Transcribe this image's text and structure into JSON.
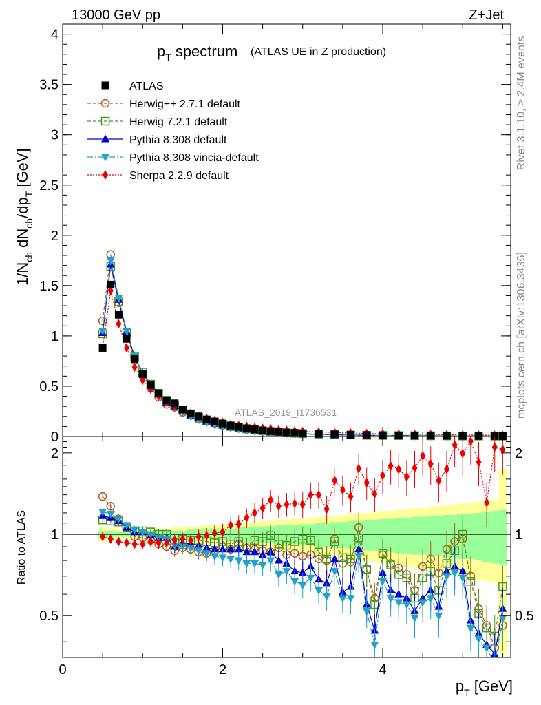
{
  "header": {
    "left": "13000 GeV pp",
    "right": "Z+Jet"
  },
  "side": {
    "rivet": "Rivet 3.1.10, ≥ 2.4M events",
    "mcplots": "mcplots.cern.ch [arXiv:1306.3436]"
  },
  "colors": {
    "herwigpp": "#b25a1c",
    "herwig7": "#4a9a1e",
    "pythia": "#0000cc",
    "vincia": "#1fa3c9",
    "sherpa": "#ee0000",
    "band_outer": "#ffff99",
    "band_inner": "#99ff99"
  },
  "chart_data": [
    {
      "type": "line",
      "title": "p_T spectrum",
      "title_main": "p",
      "title_sub": "T",
      "title_word": "spectrum",
      "subtitle": "(ATLAS UE in Z production)",
      "ylabel": "1/N_ch dN_ch/dp_T [GeV]",
      "ylabel_parts": [
        "1/N",
        "ch",
        " dN",
        "ch",
        "/dp",
        "T",
        " [GeV]"
      ],
      "watermark": "ATLAS_2019_I1736531",
      "xlim": [
        0,
        5.6
      ],
      "ylim": [
        0,
        4.1
      ],
      "yticks": [
        "0",
        "0.5",
        "1",
        "1.5",
        "2",
        "2.5",
        "3",
        "3.5",
        "4"
      ],
      "ytick_values": [
        0,
        0.5,
        1,
        1.5,
        2,
        2.5,
        3,
        3.5,
        4
      ],
      "x": [
        0.5,
        0.6,
        0.7,
        0.8,
        0.9,
        1.0,
        1.1,
        1.2,
        1.3,
        1.4,
        1.5,
        1.6,
        1.7,
        1.8,
        1.9,
        2.0,
        2.1,
        2.2,
        2.3,
        2.4,
        2.5,
        2.6,
        2.7,
        2.8,
        2.9,
        3.0,
        3.2,
        3.4,
        3.6,
        3.8,
        4.0,
        4.2,
        4.4,
        4.6,
        4.8,
        5.0,
        5.2,
        5.4,
        5.5
      ],
      "legend": [
        {
          "label": "ATLAS",
          "marker": "square",
          "color": "#000000"
        },
        {
          "label": "Herwig++ 2.7.1 default",
          "marker": "circle",
          "color": "#b25a1c"
        },
        {
          "label": "Herwig 7.2.1 default",
          "marker": "square-open",
          "color": "#4a9a1e"
        },
        {
          "label": "Pythia 8.308 default",
          "marker": "triangle-up",
          "color": "#0000cc"
        },
        {
          "label": "Pythia 8.308 vincia-default",
          "marker": "triangle-down",
          "color": "#1fa3c9"
        },
        {
          "label": "Sherpa 2.2.9 default",
          "marker": "diamond",
          "color": "#ee0000"
        }
      ],
      "series": [
        {
          "name": "ATLAS",
          "values": [
            0.88,
            1.51,
            1.21,
            0.97,
            0.77,
            0.62,
            0.51,
            0.43,
            0.36,
            0.33,
            0.27,
            0.23,
            0.2,
            0.17,
            0.15,
            0.13,
            0.11,
            0.095,
            0.082,
            0.071,
            0.062,
            0.054,
            0.047,
            0.041,
            0.036,
            0.032,
            0.026,
            0.021,
            0.017,
            0.014,
            0.012,
            0.01,
            0.009,
            0.008,
            0.007,
            0.006,
            0.005,
            0.0045,
            0.004
          ]
        },
        {
          "name": "Herwig++ 2.7.1 default",
          "values": [
            1.15,
            1.81,
            1.33,
            1.01,
            0.76,
            0.61,
            0.48,
            0.39,
            0.32,
            0.29,
            0.24,
            0.21,
            0.17,
            0.15,
            0.13,
            0.11,
            0.095,
            0.082,
            0.07,
            0.06,
            0.052,
            0.045,
            0.039,
            0.034,
            0.03,
            0.027,
            0.022,
            0.018,
            0.015,
            0.012,
            0.01,
            0.009,
            0.008,
            0.007,
            0.006,
            0.005,
            0.0045,
            0.004,
            0.0035
          ]
        },
        {
          "name": "Herwig 7.2.1 default",
          "values": [
            1.02,
            1.69,
            1.34,
            1.03,
            0.8,
            0.64,
            0.52,
            0.43,
            0.36,
            0.31,
            0.26,
            0.22,
            0.19,
            0.16,
            0.14,
            0.12,
            0.1,
            0.088,
            0.075,
            0.065,
            0.056,
            0.049,
            0.042,
            0.036,
            0.032,
            0.028,
            0.023,
            0.019,
            0.015,
            0.012,
            0.01,
            0.009,
            0.008,
            0.007,
            0.006,
            0.005,
            0.0045,
            0.004,
            0.0035
          ]
        },
        {
          "name": "Pythia 8.308 default",
          "values": [
            1.03,
            1.71,
            1.36,
            1.04,
            0.79,
            0.63,
            0.51,
            0.42,
            0.34,
            0.3,
            0.25,
            0.21,
            0.18,
            0.15,
            0.13,
            0.11,
            0.095,
            0.082,
            0.07,
            0.06,
            0.052,
            0.045,
            0.039,
            0.034,
            0.03,
            0.026,
            0.021,
            0.017,
            0.014,
            0.011,
            0.009,
            0.008,
            0.007,
            0.006,
            0.005,
            0.0045,
            0.004,
            0.0035,
            0.003
          ]
        },
        {
          "name": "Pythia 8.308 vincia-default",
          "values": [
            1.05,
            1.75,
            1.38,
            1.05,
            0.8,
            0.63,
            0.51,
            0.42,
            0.34,
            0.3,
            0.24,
            0.2,
            0.17,
            0.14,
            0.12,
            0.1,
            0.088,
            0.075,
            0.064,
            0.055,
            0.048,
            0.041,
            0.036,
            0.031,
            0.027,
            0.024,
            0.019,
            0.016,
            0.013,
            0.01,
            0.008,
            0.007,
            0.006,
            0.005,
            0.0045,
            0.004,
            0.0035,
            0.003,
            0.0025
          ]
        },
        {
          "name": "Sherpa 2.2.9 default",
          "values": [
            0.88,
            1.45,
            1.12,
            0.88,
            0.69,
            0.56,
            0.47,
            0.4,
            0.34,
            0.3,
            0.26,
            0.23,
            0.2,
            0.18,
            0.16,
            0.14,
            0.12,
            0.11,
            0.1,
            0.09,
            0.08,
            0.075,
            0.065,
            0.06,
            0.055,
            0.05,
            0.045,
            0.04,
            0.035,
            0.03,
            0.027,
            0.024,
            0.022,
            0.02,
            0.018,
            0.016,
            0.014,
            0.012,
            0.011
          ]
        }
      ]
    },
    {
      "type": "line",
      "title": "Ratio",
      "ylabel": "Ratio to ATLAS",
      "xlabel": "p_T [GeV]",
      "xlabel_main": "p",
      "xlabel_sub": "T",
      "xlabel_unit": " [GeV]",
      "xlim": [
        0,
        5.6
      ],
      "ylim": [
        0.35,
        2.3
      ],
      "xticks": [
        "0",
        "2",
        "4"
      ],
      "xtick_values": [
        0,
        2,
        4
      ],
      "yticks": [
        "0.5",
        "1",
        "2"
      ],
      "ytick_values": [
        0.5,
        1,
        2
      ],
      "bin_edges": [
        0.45,
        0.55,
        0.65,
        0.75,
        0.85,
        0.95,
        1.05,
        1.15,
        1.25,
        1.35,
        1.45,
        1.55,
        1.65,
        1.75,
        1.85,
        1.95,
        2.05,
        2.15,
        2.25,
        2.35,
        2.45,
        2.55,
        2.65,
        2.75,
        2.85,
        2.95,
        3.05,
        3.15,
        3.25,
        3.35,
        3.45,
        3.55,
        3.65,
        3.75,
        3.85,
        3.95,
        4.05,
        4.15,
        4.25,
        4.35,
        4.45,
        4.55,
        4.65,
        4.75,
        4.85,
        4.95,
        5.05,
        5.15,
        5.25,
        5.35,
        5.45,
        5.55
      ],
      "band_outer": [
        0.06,
        0.05,
        0.04,
        0.04,
        0.04,
        0.04,
        0.05,
        0.05,
        0.05,
        0.06,
        0.06,
        0.07,
        0.07,
        0.08,
        0.08,
        0.09,
        0.09,
        0.1,
        0.1,
        0.11,
        0.12,
        0.12,
        0.13,
        0.13,
        0.14,
        0.14,
        0.15,
        0.16,
        0.17,
        0.17,
        0.18,
        0.19,
        0.2,
        0.2,
        0.21,
        0.22,
        0.22,
        0.23,
        0.24,
        0.25,
        0.25,
        0.26,
        0.27,
        0.28,
        0.29,
        0.3,
        0.31,
        0.32,
        0.33,
        0.34,
        0.75
      ],
      "band_inner": [
        0.03,
        0.03,
        0.02,
        0.02,
        0.02,
        0.02,
        0.02,
        0.03,
        0.03,
        0.03,
        0.03,
        0.04,
        0.04,
        0.04,
        0.05,
        0.05,
        0.05,
        0.06,
        0.06,
        0.06,
        0.07,
        0.07,
        0.08,
        0.08,
        0.08,
        0.09,
        0.09,
        0.1,
        0.1,
        0.11,
        0.11,
        0.12,
        0.12,
        0.13,
        0.13,
        0.14,
        0.14,
        0.15,
        0.15,
        0.16,
        0.16,
        0.17,
        0.17,
        0.18,
        0.18,
        0.19,
        0.19,
        0.2,
        0.21,
        0.22,
        0.23
      ],
      "x": [
        0.5,
        0.6,
        0.7,
        0.8,
        0.9,
        1.0,
        1.1,
        1.2,
        1.3,
        1.4,
        1.5,
        1.6,
        1.7,
        1.8,
        1.9,
        2.0,
        2.1,
        2.2,
        2.3,
        2.4,
        2.5,
        2.6,
        2.7,
        2.8,
        2.9,
        3.0,
        3.1,
        3.2,
        3.3,
        3.4,
        3.5,
        3.6,
        3.7,
        3.8,
        3.9,
        4.0,
        4.1,
        4.2,
        4.3,
        4.4,
        4.5,
        4.6,
        4.7,
        4.8,
        4.9,
        5.0,
        5.1,
        5.2,
        5.3,
        5.4,
        5.5
      ],
      "series": [
        {
          "name": "Herwig++ 2.7.1 default",
          "values": [
            1.38,
            1.27,
            1.14,
            1.06,
            0.98,
            0.97,
            0.95,
            0.92,
            0.9,
            0.87,
            0.89,
            0.88,
            0.86,
            0.85,
            0.87,
            0.9,
            0.88,
            0.92,
            0.89,
            0.88,
            0.87,
            0.86,
            0.89,
            0.84,
            0.85,
            0.83,
            0.84,
            0.81,
            0.8,
            0.96,
            0.78,
            0.79,
            1.06,
            0.74,
            0.58,
            0.84,
            0.78,
            0.75,
            0.71,
            0.62,
            0.76,
            0.81,
            0.72,
            0.88,
            0.94,
            0.96,
            0.7,
            0.53,
            0.46,
            0.38,
            0.46
          ]
        },
        {
          "name": "Herwig 7.2.1 default",
          "values": [
            1.13,
            1.12,
            1.11,
            1.06,
            1.03,
            1.03,
            1.02,
            1.0,
            1.0,
            0.93,
            0.96,
            0.95,
            0.95,
            0.94,
            0.93,
            0.94,
            0.92,
            0.94,
            0.9,
            0.95,
            0.94,
            0.99,
            0.92,
            0.91,
            0.94,
            0.96,
            0.95,
            0.86,
            0.81,
            0.94,
            0.82,
            0.81,
            0.97,
            0.74,
            0.55,
            0.85,
            0.77,
            0.71,
            0.69,
            0.58,
            0.69,
            0.73,
            0.62,
            0.78,
            0.87,
            1.0,
            0.67,
            0.51,
            0.45,
            0.42,
            0.64
          ]
        },
        {
          "name": "Pythia 8.308 default",
          "values": [
            1.17,
            1.15,
            1.12,
            1.06,
            1.02,
            1.02,
            0.99,
            0.97,
            0.97,
            0.9,
            0.93,
            0.92,
            0.91,
            0.89,
            0.88,
            0.88,
            0.88,
            0.88,
            0.86,
            0.86,
            0.84,
            0.86,
            0.8,
            0.78,
            0.73,
            0.72,
            0.76,
            0.68,
            0.66,
            0.81,
            0.61,
            0.64,
            0.88,
            0.55,
            0.44,
            0.72,
            0.62,
            0.6,
            0.58,
            0.52,
            0.58,
            0.62,
            0.54,
            0.73,
            0.76,
            0.73,
            0.48,
            0.43,
            0.39,
            0.36,
            0.53
          ]
        },
        {
          "name": "Pythia 8.308 vincia-default",
          "values": [
            1.21,
            1.19,
            1.14,
            1.08,
            1.04,
            1.02,
            1.0,
            0.97,
            0.96,
            0.91,
            0.9,
            0.89,
            0.87,
            0.85,
            0.83,
            0.82,
            0.81,
            0.8,
            0.78,
            0.78,
            0.77,
            0.8,
            0.71,
            0.73,
            0.67,
            0.65,
            0.69,
            0.62,
            0.59,
            0.73,
            0.58,
            0.58,
            0.83,
            0.52,
            0.39,
            0.67,
            0.58,
            0.56,
            0.55,
            0.49,
            0.56,
            0.58,
            0.5,
            0.7,
            0.72,
            0.69,
            0.45,
            0.41,
            0.38,
            0.33,
            0.49
          ]
        },
        {
          "name": "Sherpa 2.2.9 default",
          "values": [
            0.98,
            0.96,
            0.94,
            0.93,
            0.92,
            0.92,
            0.94,
            0.93,
            0.93,
            0.95,
            0.96,
            0.95,
            0.98,
            0.99,
            1.01,
            1.02,
            1.08,
            1.09,
            1.15,
            1.2,
            1.25,
            1.34,
            1.27,
            1.29,
            1.3,
            1.29,
            1.4,
            1.4,
            1.24,
            1.58,
            1.46,
            1.38,
            1.75,
            1.55,
            1.41,
            1.65,
            1.79,
            1.74,
            1.63,
            1.76,
            1.95,
            1.82,
            1.58,
            1.74,
            2.14,
            1.99,
            2.21,
            1.85,
            1.31,
            2.1,
            2.06
          ]
        }
      ]
    }
  ]
}
